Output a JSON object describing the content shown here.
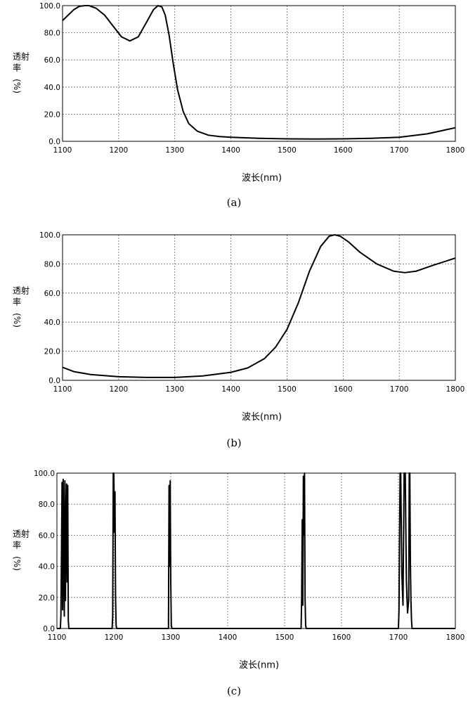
{
  "chart_data": [
    {
      "type": "line",
      "caption": "(a)",
      "xlabel": "波长(nm)",
      "ylabel": "透射率(%)",
      "xlim": [
        1100,
        1800
      ],
      "ylim": [
        0,
        100
      ],
      "xticks": [
        "1100",
        "1200",
        "1300",
        "1400",
        "1500",
        "1600",
        "1700",
        "1800"
      ],
      "yticks": [
        "0.0",
        "20.0",
        "40.0",
        "60.0",
        "80.0",
        "100.0"
      ],
      "grid": true,
      "series": [
        {
          "x": [
            1100,
            1110,
            1120,
            1130,
            1140,
            1147,
            1160,
            1175,
            1190,
            1205,
            1220,
            1235,
            1250,
            1262,
            1270,
            1277,
            1283,
            1290,
            1297,
            1305,
            1315,
            1325,
            1340,
            1360,
            1380,
            1400,
            1450,
            1500,
            1550,
            1600,
            1650,
            1700,
            1750,
            1800
          ],
          "y": [
            89,
            93,
            97,
            99.5,
            100,
            100,
            98,
            93,
            85,
            77,
            74,
            77,
            88,
            97,
            100,
            99,
            93,
            78,
            58,
            38,
            22,
            13,
            7.5,
            4.5,
            3.5,
            3,
            2.2,
            1.8,
            1.7,
            1.8,
            2.2,
            3,
            5.5,
            10
          ]
        }
      ]
    },
    {
      "type": "line",
      "caption": "(b)",
      "xlabel": "波长(nm)",
      "ylabel": "透射率(%)",
      "xlim": [
        1100,
        1800
      ],
      "ylim": [
        0,
        100
      ],
      "xticks": [
        "1100",
        "1200",
        "1300",
        "1400",
        "1500",
        "1600",
        "1700",
        "1800"
      ],
      "yticks": [
        "0.0",
        "20.0",
        "40.0",
        "60.0",
        "80.0",
        "100.0"
      ],
      "grid": true,
      "series": [
        {
          "x": [
            1100,
            1120,
            1150,
            1200,
            1250,
            1300,
            1350,
            1400,
            1430,
            1460,
            1480,
            1500,
            1520,
            1540,
            1560,
            1575,
            1585,
            1595,
            1610,
            1630,
            1660,
            1690,
            1710,
            1730,
            1760,
            1800
          ],
          "y": [
            9,
            6,
            4,
            2.5,
            2,
            2,
            3,
            5.5,
            8.5,
            15,
            23,
            35,
            53,
            75,
            92,
            99,
            100,
            99,
            95,
            88,
            80,
            75,
            74,
            75,
            79,
            84
          ]
        }
      ]
    },
    {
      "type": "line",
      "caption": "(c)",
      "xlabel": "波长(nm)",
      "ylabel": "透射率(%)",
      "xlim": [
        1100,
        1800
      ],
      "ylim": [
        0,
        100
      ],
      "xticks": [
        "1100",
        "1200",
        "1300",
        "1400",
        "1500",
        "1600",
        "1700",
        "1800"
      ],
      "yticks": [
        "0.0",
        "20.0",
        "40.0",
        "60.0",
        "80.0",
        "100.0"
      ],
      "grid": true,
      "series": [
        {
          "x": [
            1100,
            1106,
            1107,
            1108,
            1109,
            1110,
            1111,
            1112,
            1113,
            1114,
            1115,
            1116,
            1117,
            1118,
            1119,
            1120,
            1121,
            1122,
            1197,
            1198,
            1199,
            1200,
            1201,
            1202,
            1203,
            1204,
            1205,
            1296,
            1297,
            1298,
            1299,
            1300,
            1301,
            1302,
            1529,
            1530,
            1531,
            1532,
            1533,
            1534,
            1535,
            1536,
            1537,
            1538,
            1700,
            1701,
            1702,
            1703,
            1704,
            1706,
            1708,
            1710,
            1712,
            1714,
            1716,
            1718,
            1719,
            1720,
            1721,
            1722,
            1723,
            1724,
            1800
          ],
          "y": [
            0,
            0,
            8,
            48,
            94,
            12,
            96,
            40,
            8,
            95,
            18,
            60,
            93,
            30,
            92,
            5,
            0,
            0,
            0,
            8,
            100,
            100,
            62,
            88,
            20,
            2,
            0,
            0,
            92,
            40,
            95,
            30,
            2,
            0,
            0,
            20,
            70,
            15,
            98,
            60,
            100,
            18,
            2,
            0,
            0,
            12,
            60,
            100,
            100,
            35,
            15,
            100,
            100,
            30,
            10,
            18,
            100,
            100,
            42,
            18,
            5,
            0,
            0
          ]
        }
      ]
    }
  ]
}
